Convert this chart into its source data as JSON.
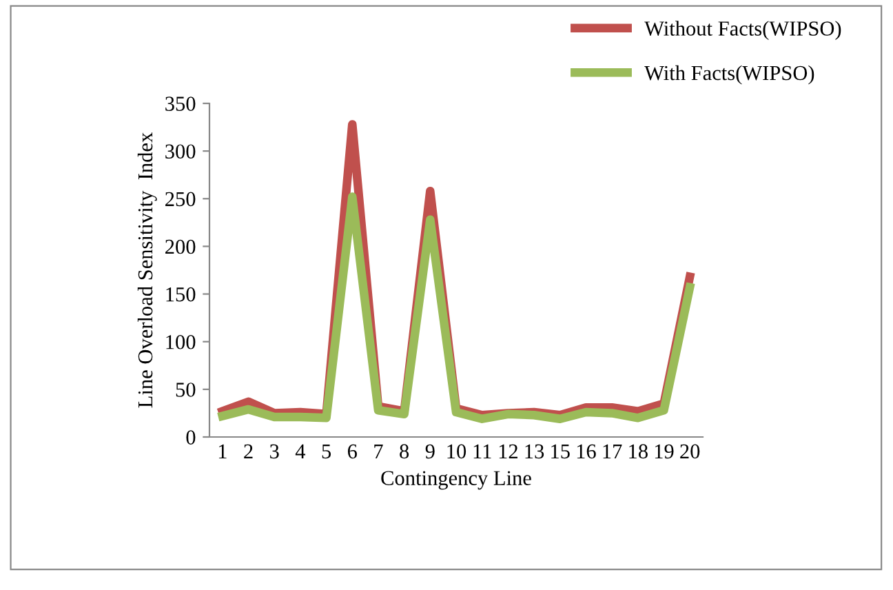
{
  "chart_data": {
    "type": "line",
    "xlabel": "Contingency Line",
    "ylabel": "Line Overload Sensitivity  Index",
    "categories": [
      "1",
      "2",
      "3",
      "4",
      "5",
      "6",
      "7",
      "8",
      "9",
      "10",
      "11",
      "12",
      "13",
      "15",
      "16",
      "17",
      "18",
      "19",
      "20"
    ],
    "series": [
      {
        "name": "Without Facts(WIPSO)",
        "color": "#c0504d",
        "values": [
          27,
          37,
          25,
          26,
          24,
          328,
          32,
          27,
          258,
          30,
          23,
          25,
          26,
          23,
          31,
          31,
          27,
          35,
          168
        ]
      },
      {
        "name": "With Facts(WIPSO)",
        "color": "#9bbb59",
        "values": [
          22,
          29,
          21,
          21,
          20,
          252,
          28,
          24,
          228,
          26,
          19,
          24,
          23,
          19,
          26,
          25,
          20,
          28,
          157
        ]
      }
    ],
    "ylim": [
      0,
      350
    ],
    "yticks": [
      0,
      50,
      100,
      150,
      200,
      250,
      300,
      350
    ],
    "grid": false,
    "legend": "top right",
    "marker": "none",
    "line_style": "solid"
  }
}
